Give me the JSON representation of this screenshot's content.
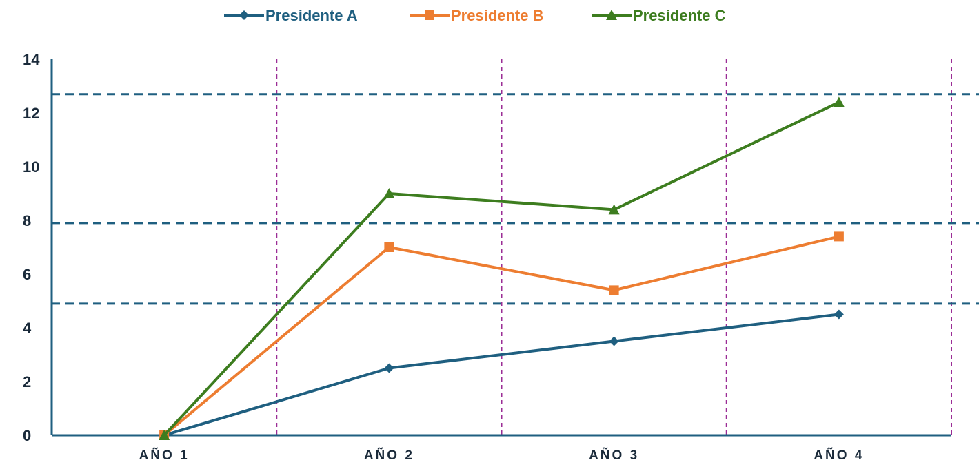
{
  "chart_data": {
    "type": "line",
    "categories": [
      "AÑO 1",
      "AÑO 2",
      "AÑO 3",
      "AÑO 4"
    ],
    "series": [
      {
        "name": "Presidente A",
        "values": [
          0,
          2.5,
          3.5,
          4.5
        ],
        "color": "#1f5f80",
        "marker": "diamond"
      },
      {
        "name": "Presidente B",
        "values": [
          0,
          7.0,
          5.4,
          7.4
        ],
        "color": "#ed7d31",
        "marker": "square"
      },
      {
        "name": "Presidente C",
        "values": [
          0,
          9.0,
          8.4,
          12.4
        ],
        "color": "#3d7d1f",
        "marker": "triangle"
      }
    ],
    "ylim": [
      0,
      14
    ],
    "yticks": [
      "0",
      "2",
      "4",
      "6",
      "8",
      "10",
      "12",
      "14"
    ],
    "legend_position": "top-center",
    "reference_lines": [
      {
        "value": 12.7,
        "color": "#1f5f80",
        "style": "dashed"
      },
      {
        "value": 7.9,
        "color": "#1f5f80",
        "style": "dashed"
      },
      {
        "value": 4.9,
        "color": "#1f5f80",
        "style": "dashed"
      }
    ],
    "vertical_separators": {
      "color": "#9b2d96",
      "style": "dashed"
    },
    "axis_color": "#1f5f80"
  }
}
